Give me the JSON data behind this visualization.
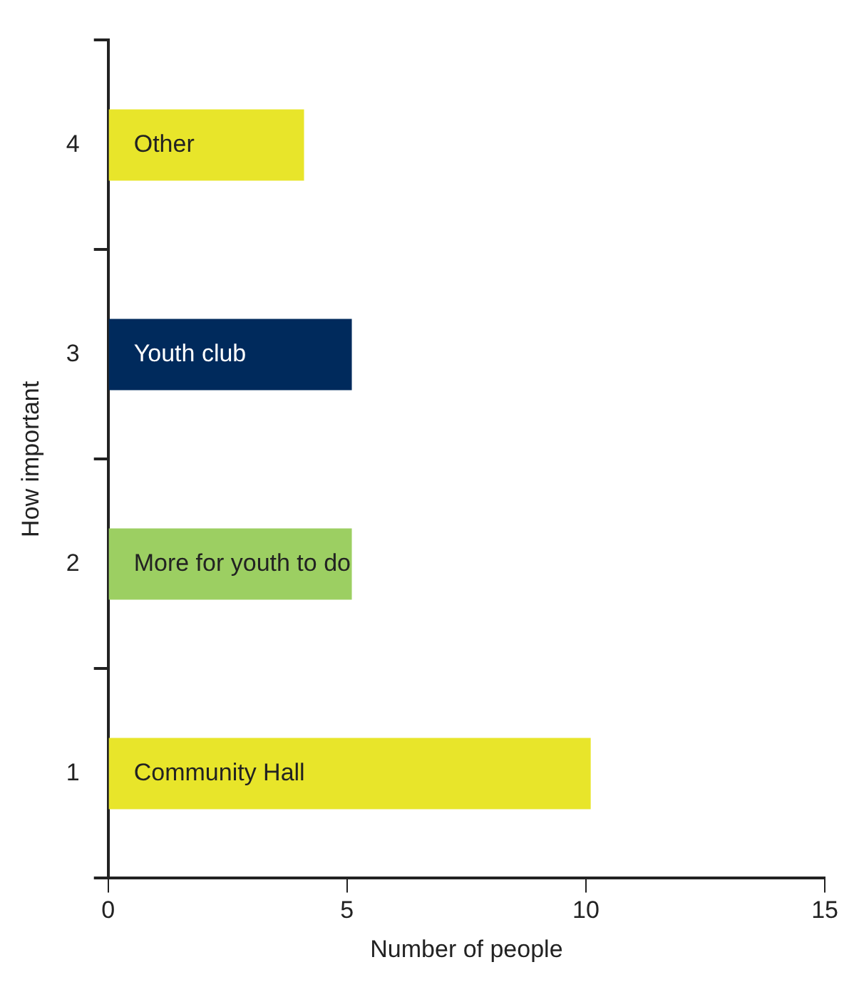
{
  "chart_data": {
    "type": "bar",
    "orientation": "horizontal",
    "categories": [
      "4",
      "3",
      "2",
      "1"
    ],
    "colors": [
      "#e8e52a",
      "#002a5c",
      "#9ccf62",
      "#e8e52a"
    ],
    "values": [
      4.1,
      5.1,
      5.1,
      10.1
    ],
    "xlim": [
      0,
      15
    ],
    "xticks": [
      0,
      5,
      10,
      15
    ],
    "xlabel": "Number of people",
    "ylabel": "How important",
    "grid": false,
    "legend": false,
    "annotations": [
      "Other",
      "Youth club",
      "More for youth to do",
      "Community Hall"
    ]
  }
}
